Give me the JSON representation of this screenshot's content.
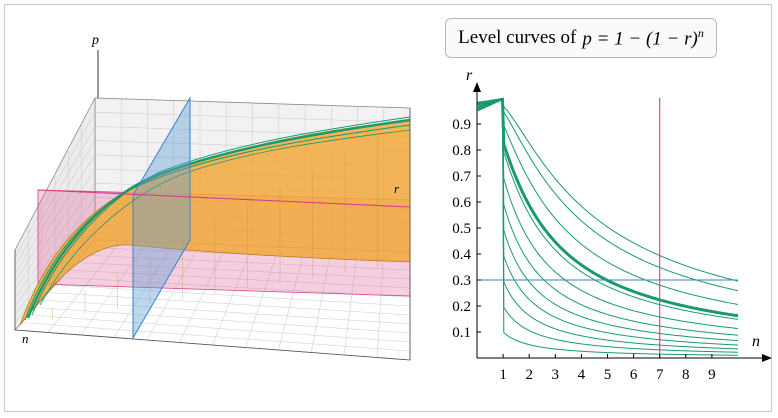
{
  "title": {
    "prefix": "Level curves of",
    "formula": "p = 1 − (1 − r)",
    "exponent": "n"
  },
  "surface_plot": {
    "axis_labels": {
      "vertical": "p",
      "depth": "r",
      "front": "n"
    },
    "colors": {
      "surface": "#f2a93b",
      "level_curve": "#1a9a6c",
      "plane_n": "#5b9bd5",
      "plane_r": "#e06a9a",
      "box": "#555555",
      "grid": "#c8c8c8"
    }
  },
  "chart_data": {
    "type": "line",
    "xlabel": "n",
    "ylabel": "r",
    "xlim": [
      0,
      10
    ],
    "ylim": [
      0,
      1
    ],
    "x_ticks": [
      1,
      2,
      3,
      4,
      5,
      6,
      7,
      8,
      9
    ],
    "y_ticks": [
      0.1,
      0.2,
      0.3,
      0.4,
      0.5,
      0.6,
      0.7,
      0.8,
      0.9
    ],
    "level_curves_p": [
      0.1,
      0.2,
      0.3,
      0.4,
      0.5,
      0.6,
      0.7,
      0.8,
      0.9,
      0.95,
      0.97
    ],
    "highlight_curve_p": 0.83,
    "vertical_line_n": 7.0,
    "horizontal_line_r": 0.3,
    "colors": {
      "curves": "#1a9a6c",
      "vertical_line": "#d63c8a",
      "horizontal_line": "#3b82c4",
      "axes": "#000000"
    }
  }
}
